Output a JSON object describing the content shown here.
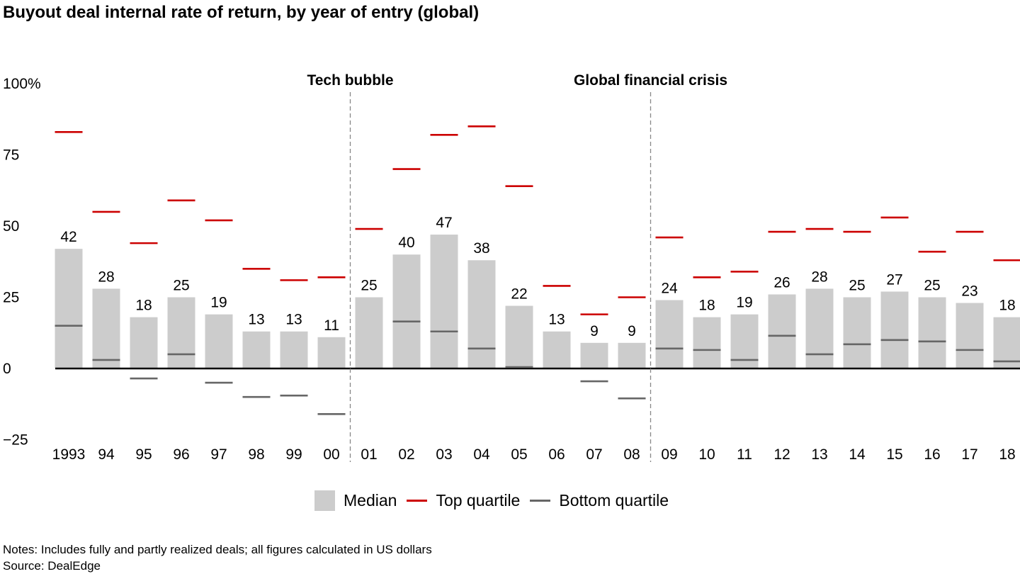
{
  "title": "Buyout deal internal rate of return, by year of entry (global)",
  "chart_data": {
    "type": "bar",
    "title": "Buyout deal internal rate of return, by year of entry (global)",
    "categories": [
      "1993",
      "94",
      "95",
      "96",
      "97",
      "98",
      "99",
      "00",
      "01",
      "02",
      "03",
      "04",
      "05",
      "06",
      "07",
      "08",
      "09",
      "10",
      "11",
      "12",
      "13",
      "14",
      "15",
      "16",
      "17",
      "18"
    ],
    "series": [
      {
        "name": "Median",
        "kind": "bar",
        "color": "#cccccc",
        "values": [
          42,
          28,
          18,
          25,
          19,
          13,
          13,
          11,
          25,
          40,
          47,
          38,
          22,
          13,
          9,
          9,
          24,
          18,
          19,
          26,
          28,
          25,
          27,
          25,
          23,
          18
        ]
      },
      {
        "name": "Top quartile",
        "kind": "marker",
        "color": "#cc0000",
        "values": [
          83,
          55,
          44,
          59,
          52,
          35,
          31,
          32,
          49,
          70,
          82,
          85,
          64,
          29,
          19,
          25,
          46,
          32,
          34,
          48,
          49,
          48,
          53,
          41,
          48,
          38
        ]
      },
      {
        "name": "Bottom quartile",
        "kind": "marker",
        "color": "#666666",
        "values": [
          15,
          3,
          -3.5,
          5,
          -5,
          -10,
          -9.5,
          -16,
          null,
          16.5,
          13,
          7,
          0.5,
          null,
          -4.5,
          -10.5,
          7,
          6.5,
          3,
          11.5,
          5,
          8.5,
          10,
          9.5,
          6.5,
          2.5
        ]
      }
    ],
    "y_ticks": [
      {
        "value": 100,
        "label": "100%"
      },
      {
        "value": 75,
        "label": "75"
      },
      {
        "value": 50,
        "label": "50"
      },
      {
        "value": 25,
        "label": "25"
      },
      {
        "value": 0,
        "label": "0"
      },
      {
        "value": -25,
        "label": "−25"
      }
    ],
    "ylim": [
      -25,
      100
    ],
    "annotations": [
      {
        "label": "Tech bubble",
        "after_category": "00"
      },
      {
        "label": "Global financial crisis",
        "after_category": "08"
      }
    ],
    "grid": false,
    "legend_position": "bottom-center"
  },
  "legend": {
    "median": "Median",
    "top": "Top quartile",
    "bottom": "Bottom quartile",
    "median_color": "#cccccc",
    "top_color": "#cc0000",
    "bottom_color": "#666666"
  },
  "notes": "Notes: Includes fully and partly realized deals; all figures calculated in US dollars",
  "source": "Source: DealEdge"
}
